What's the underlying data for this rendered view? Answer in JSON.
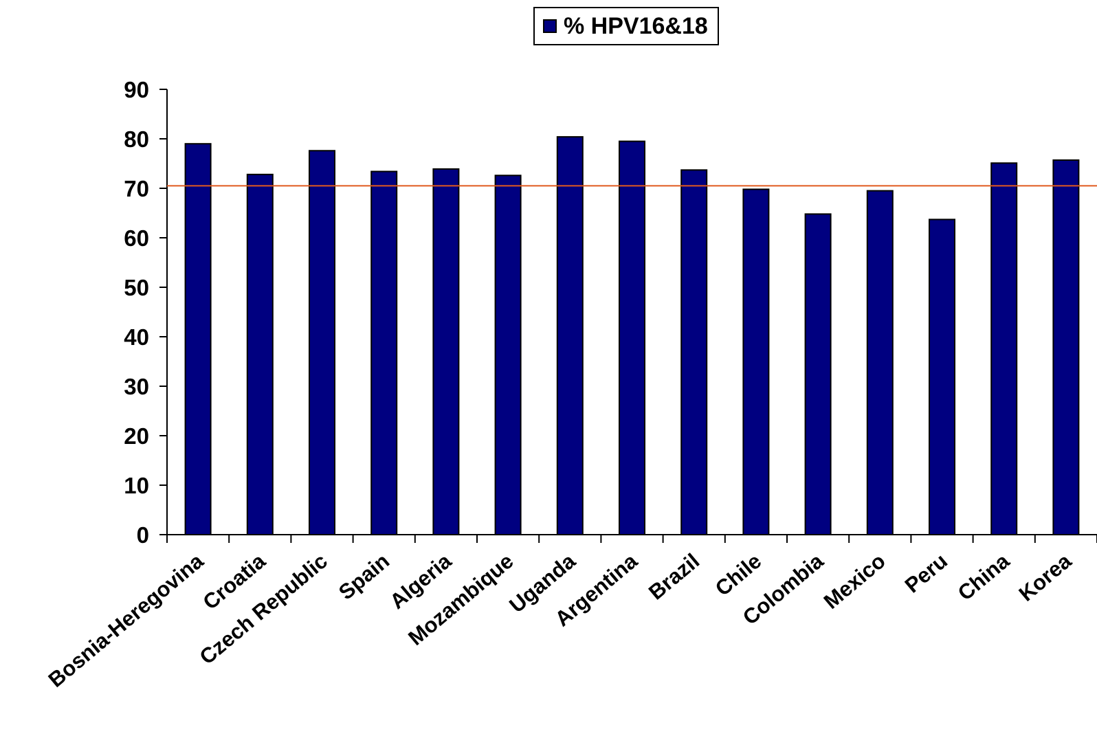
{
  "chart_data": {
    "type": "bar",
    "categories": [
      "Bosnia-Heregovina",
      "Croatia",
      "Czech Republic",
      "Spain",
      "Algeria",
      "Mozambique",
      "Uganda",
      "Argentina",
      "Brazil",
      "Chile",
      "Colombia",
      "Mexico",
      "Peru",
      "China",
      "Korea"
    ],
    "series": [
      {
        "name": "% HPV16&18",
        "color": "#000080",
        "values": [
          79,
          72.8,
          77.6,
          73.4,
          73.9,
          72.6,
          80.4,
          79.5,
          73.7,
          69.8,
          64.8,
          69.5,
          63.7,
          75.1,
          75.7
        ]
      }
    ],
    "ylim": [
      0,
      90
    ],
    "yticks": [
      0,
      10,
      20,
      30,
      40,
      50,
      60,
      70,
      80,
      90
    ],
    "reference_line": {
      "value": 70.5,
      "color": "#e05a1e"
    },
    "legend": "top",
    "grid": false
  }
}
